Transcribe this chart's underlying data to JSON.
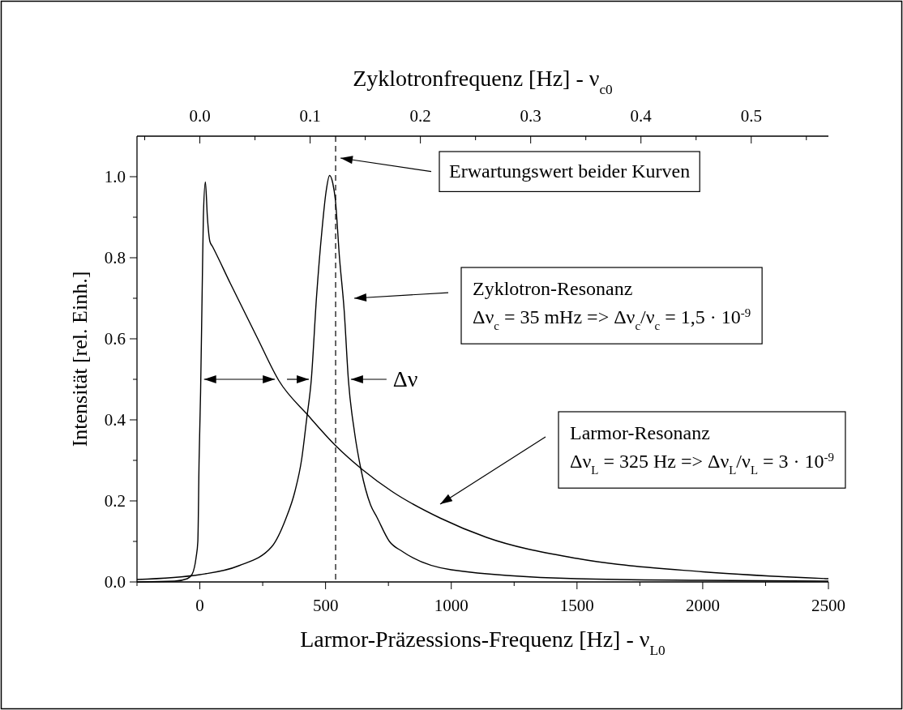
{
  "chart_data": {
    "type": "line",
    "xlabel": "Larmor-Präzessions-Frequenz [Hz] - ν$_{L0}$",
    "x2label": "Zyklotronfrequenz [Hz] - ν$_{c0}$",
    "ylabel": "Intensität [rel. Einh.]",
    "xlim": [
      -250,
      2500
    ],
    "xticks": [
      {
        "value": -250,
        "label": null
      },
      0,
      {
        "value": 250,
        "label": null
      },
      500,
      {
        "value": 750,
        "label": null
      },
      1000,
      {
        "value": 1250,
        "label": null
      },
      1500,
      {
        "value": 1750,
        "label": null
      },
      2000,
      {
        "value": 2250,
        "label": null
      },
      2500
    ],
    "x2lim": [
      -0.057,
      0.57
    ],
    "x2ticks": [
      {
        "value": -0.05,
        "label": null
      },
      {
        "value": 0,
        "label": "0.0"
      },
      {
        "value": 0.05,
        "label": null
      },
      0.1,
      {
        "value": 0.15,
        "label": null
      },
      0.2,
      {
        "value": 0.25,
        "label": null
      },
      0.3,
      {
        "value": 0.35,
        "label": null
      },
      0.4,
      {
        "value": 0.45,
        "label": null
      },
      0.5,
      {
        "value": 0.55,
        "label": null
      }
    ],
    "ylim": [
      0,
      1.1
    ],
    "yticks": [
      {
        "value": 0,
        "label": "0.0"
      },
      {
        "value": 0.1,
        "label": null
      },
      0.2,
      {
        "value": 0.3,
        "label": null
      },
      0.4,
      {
        "value": 0.5,
        "label": null
      },
      0.6,
      {
        "value": 0.7,
        "label": null
      },
      0.8,
      {
        "value": 0.9,
        "label": null
      },
      {
        "value": 1,
        "label": "1.0"
      }
    ],
    "grid": false,
    "series": [
      {
        "color": "#000000",
        "x": [
          -250,
          -100,
          -50,
          -30,
          -15,
          -8,
          -3,
          3,
          10,
          14,
          22,
          30,
          40,
          51,
          121,
          228,
          314,
          432,
          539,
          647,
          765,
          958,
          1140,
          1500,
          2000,
          2500
        ],
        "values": [
          0,
          0.002,
          0.008,
          0.02,
          0.06,
          0.1,
          0.3,
          0.47,
          0.75,
          0.9,
          0.987,
          0.9,
          0.84,
          0.827,
          0.737,
          0.603,
          0.497,
          0.41,
          0.337,
          0.277,
          0.223,
          0.157,
          0.11,
          0.058,
          0.025,
          0.008
        ]
      },
      {
        "color": "#000000",
        "x": [
          -250,
          0,
          155,
          286,
          342,
          378,
          405,
          425,
          443,
          464,
          486,
          502,
          516,
          529,
          539,
          555,
          574,
          591,
          615,
          641,
          679,
          704,
          754,
          806,
          1000,
          1500,
          2000,
          2500
        ],
        "values": [
          0.006,
          0.018,
          0.04,
          0.087,
          0.156,
          0.223,
          0.303,
          0.403,
          0.497,
          0.703,
          0.87,
          0.963,
          1.003,
          0.983,
          0.943,
          0.803,
          0.67,
          0.497,
          0.37,
          0.277,
          0.19,
          0.16,
          0.1,
          0.075,
          0.03,
          0.008,
          0.004,
          0.002
        ]
      }
    ],
    "ref_lines": [
      {
        "axis": "x",
        "value": 540,
        "label": "Erwartungswert beider Kurven",
        "line_style": "dashed",
        "color": "#000000"
      }
    ],
    "annotations": [
      "Zyklotron-Resonanz",
      "Δν$_{c}$ = 35 mHz => Δν$_{c}$/ν$_{c}$ = 1,5 · 10$^{-9}$",
      "Larmor-Resonanz",
      "Δν$_{L}$ = 325 Hz => Δν$_{L}$/ν$_{L}$ = 3 · 10$^{-9}$",
      {
        "text": "Δν",
        "x": 591,
        "y": 0.5
      }
    ]
  }
}
